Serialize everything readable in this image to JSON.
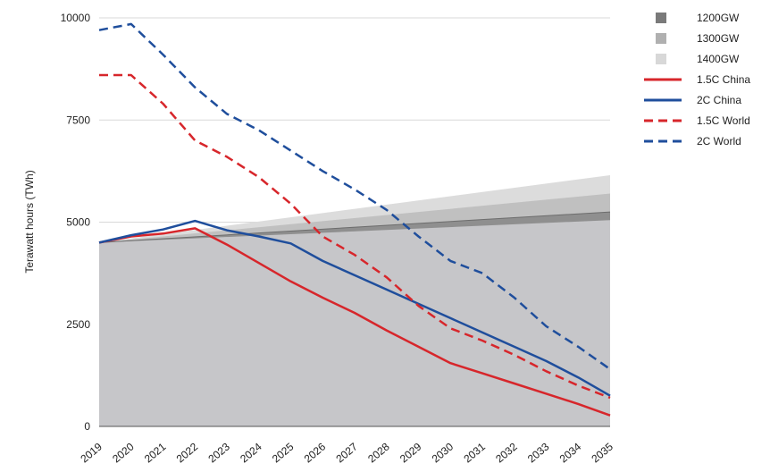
{
  "chart_data": {
    "type": "line",
    "title": "",
    "xlabel": "",
    "ylabel": "Terawatt hours (TWh)",
    "x": [
      "2019",
      "2020",
      "2021",
      "2022",
      "2023",
      "2024",
      "2025",
      "2026",
      "2027",
      "2028",
      "2029",
      "2030",
      "2031",
      "2032",
      "2033",
      "2034",
      "2035"
    ],
    "ylim": [
      0,
      10000
    ],
    "yticks": [
      "0",
      "2500",
      "5000",
      "7500",
      "10000"
    ],
    "grid": true,
    "legend_position": "right",
    "areas": [
      {
        "name": "1400GW",
        "color": "#dcdcdc",
        "start": 4500,
        "end": 6150
      },
      {
        "name": "1300GW",
        "color": "#bdbdbd",
        "start": 4500,
        "end": 5700
      },
      {
        "name": "1200GW",
        "color": "#8a8a8a",
        "start": 4500,
        "end": 5250
      }
    ],
    "series": [
      {
        "name": "1.5C China",
        "color": "#d7262b",
        "dash": false,
        "values": [
          4500,
          4650,
          4720,
          4850,
          4450,
          4000,
          3550,
          3150,
          2780,
          2350,
          1950,
          1550,
          1300,
          1050,
          800,
          550,
          270
        ]
      },
      {
        "name": "2C China",
        "color": "#1f4e9c",
        "dash": false,
        "values": [
          4500,
          4680,
          4820,
          5030,
          4800,
          4650,
          4480,
          4050,
          3700,
          3350,
          3000,
          2650,
          2300,
          1950,
          1600,
          1200,
          750
        ]
      },
      {
        "name": "1.5C World",
        "color": "#d7262b",
        "dash": true,
        "values": [
          8600,
          8600,
          7900,
          7000,
          6600,
          6100,
          5450,
          4650,
          4200,
          3650,
          2950,
          2400,
          2100,
          1750,
          1350,
          1000,
          700
        ]
      },
      {
        "name": "2C World",
        "color": "#1f4e9c",
        "dash": true,
        "values": [
          9700,
          9850,
          9100,
          8300,
          7650,
          7250,
          6750,
          6250,
          5800,
          5300,
          4650,
          4050,
          3750,
          3150,
          2450,
          1950,
          1400
        ]
      }
    ],
    "legend": [
      {
        "name": "1200GW",
        "kind": "square",
        "color": "#7a7a7a"
      },
      {
        "name": "1300GW",
        "kind": "square",
        "color": "#b0b0b0"
      },
      {
        "name": "1400GW",
        "kind": "square",
        "color": "#d8d8d8"
      },
      {
        "name": "1.5C China",
        "kind": "line",
        "color": "#d7262b",
        "dash": false
      },
      {
        "name": "2C China",
        "kind": "line",
        "color": "#1f4e9c",
        "dash": false
      },
      {
        "name": "1.5C World",
        "kind": "line",
        "color": "#d7262b",
        "dash": true
      },
      {
        "name": "2C World",
        "kind": "line",
        "color": "#1f4e9c",
        "dash": true
      }
    ]
  }
}
